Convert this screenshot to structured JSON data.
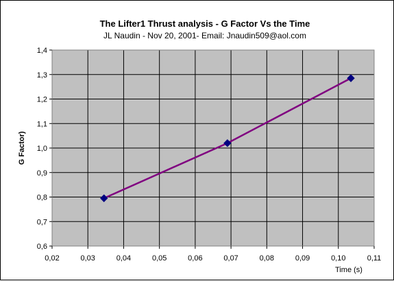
{
  "chart_data": {
    "type": "line",
    "title": "The Lifter1 Thrust analysis - G Factor Vs the Time",
    "subtitle": "JL Naudin - Nov 20, 2001- Email: Jnaudin509@aol.com",
    "xlabel": "Time (s)",
    "ylabel": "G Factor)",
    "xlim": [
      0.02,
      0.11
    ],
    "ylim": [
      0.6,
      1.4
    ],
    "x_ticks": [
      "0,02",
      "0,03",
      "0,04",
      "0,05",
      "0,06",
      "0,07",
      "0,08",
      "0,09",
      "0,10",
      "0,11"
    ],
    "y_ticks": [
      "0,6",
      "0,7",
      "0,8",
      "0,9",
      "1,0",
      "1,1",
      "1,2",
      "1,3",
      "1,4"
    ],
    "grid": true,
    "plot_background": "#c0c0c0",
    "series": [
      {
        "x": [
          0.0345,
          0.069,
          0.1035
        ],
        "y": [
          0.795,
          1.02,
          1.285
        ],
        "line_color": "#800080",
        "marker_color": "#000080",
        "marker": "diamond"
      }
    ]
  }
}
